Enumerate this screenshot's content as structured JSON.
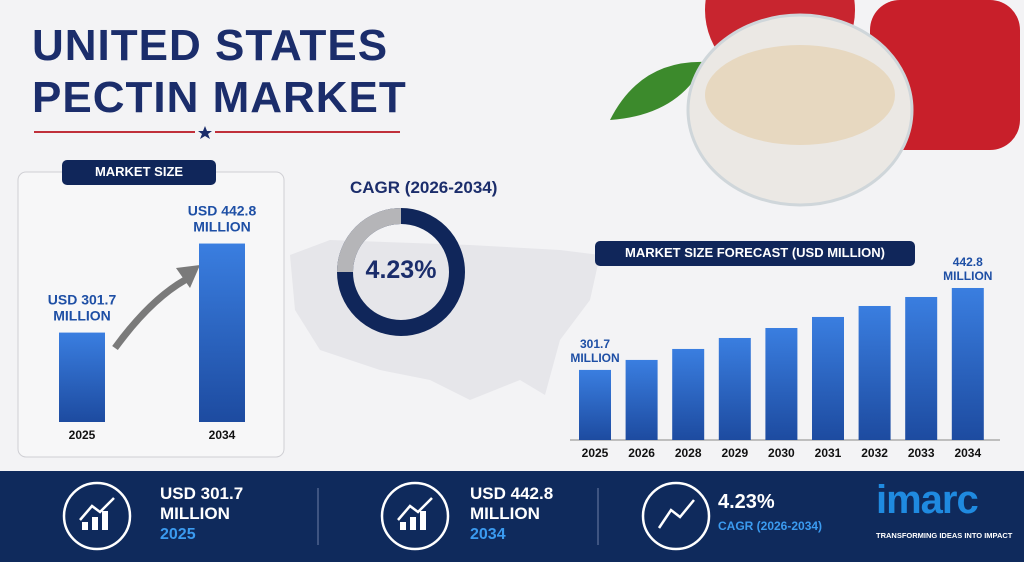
{
  "header": {
    "title": "UNITED STATES PECTIN MARKET"
  },
  "chart_data": [
    {
      "type": "bar",
      "title": "MARKET SIZE",
      "categories": [
        "2025",
        "2034"
      ],
      "values": [
        301.7,
        442.8
      ],
      "value_labels": [
        "USD 301.7 MILLION",
        "USD 442.8 MILLION"
      ],
      "color": "#2a66c9",
      "ylim": [
        160,
        450
      ]
    },
    {
      "type": "bar",
      "title": "MARKET SIZE FORECAST (USD MILLION)",
      "categories": [
        "2025",
        "2026",
        "2028",
        "2029",
        "2030",
        "2031",
        "2032",
        "2033",
        "2034"
      ],
      "values": [
        301.7,
        318.9,
        337.8,
        356.7,
        373.9,
        392.9,
        411.8,
        427.3,
        442.8
      ],
      "value_labels": [
        "301.7 MILLION",
        null,
        null,
        null,
        null,
        null,
        null,
        null,
        "442.8 MILLION"
      ],
      "color": "#2a66c9",
      "ylim": [
        181,
        460
      ]
    }
  ],
  "cagr": {
    "label": "CAGR (2026-2034)",
    "value": "4.23%"
  },
  "footer": {
    "stats": [
      {
        "value": "USD 301.7 MILLION",
        "detail": "2025"
      },
      {
        "value": "USD 442.8 MILLION",
        "detail": "2034"
      },
      {
        "value": "4.23%",
        "detail": "CAGR (2026-2034)"
      }
    ]
  },
  "logo": {
    "name": "imarc",
    "tagline": "TRANSFORMING IDEAS INTO IMPACT"
  }
}
